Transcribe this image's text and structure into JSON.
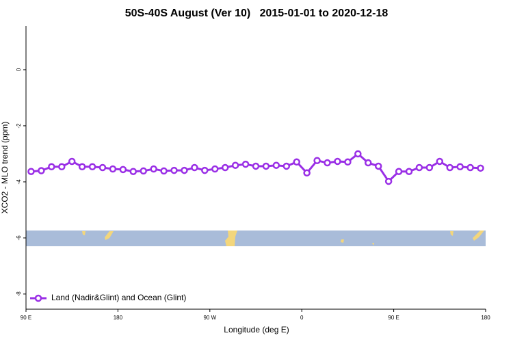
{
  "chart_data": {
    "type": "line",
    "title": "50S-40S August (Ver 10)   2015-01-01 to 2020-12-18",
    "x_label": "Longitude (deg E)",
    "y_label": "XCO2 - MLO trend (ppm)",
    "xlim": [
      90,
      540
    ],
    "xticks": [
      {
        "value": 90,
        "label": "90 E"
      },
      {
        "value": 180,
        "label": "180"
      },
      {
        "value": 270,
        "label": "90 W"
      },
      {
        "value": 360,
        "label": "0"
      },
      {
        "value": 450,
        "label": "90 E"
      },
      {
        "value": 540,
        "label": "180"
      }
    ],
    "ylim": [
      -8.54,
      1.56
    ],
    "yticks": [
      0,
      -2,
      -4,
      -6,
      -8
    ],
    "legend": "bottom-left",
    "x": [
      95,
      105,
      115,
      125,
      135,
      145,
      155,
      165,
      175,
      185,
      195,
      205,
      215,
      225,
      235,
      245,
      255,
      265,
      275,
      285,
      295,
      305,
      315,
      325,
      335,
      345,
      355,
      365,
      375,
      385,
      395,
      405,
      415,
      425,
      435,
      445,
      455,
      465,
      475,
      485,
      495,
      505,
      515,
      525,
      535
    ],
    "series": [
      {
        "name": "Land (Nadir&Glint) and Ocean (Glint)",
        "color": "#9a2fe6",
        "values": [
          -3.63,
          -3.6,
          -3.46,
          -3.46,
          -3.27,
          -3.46,
          -3.46,
          -3.49,
          -3.54,
          -3.56,
          -3.63,
          -3.61,
          -3.54,
          -3.61,
          -3.59,
          -3.59,
          -3.49,
          -3.59,
          -3.54,
          -3.49,
          -3.41,
          -3.37,
          -3.44,
          -3.44,
          -3.41,
          -3.44,
          -3.29,
          -3.68,
          -3.24,
          -3.32,
          -3.27,
          -3.29,
          -3.0,
          -3.32,
          -3.44,
          -3.98,
          -3.63,
          -3.63,
          -3.49,
          -3.49,
          -3.27,
          -3.49,
          -3.46,
          -3.49,
          -3.51
        ]
      }
    ]
  }
}
